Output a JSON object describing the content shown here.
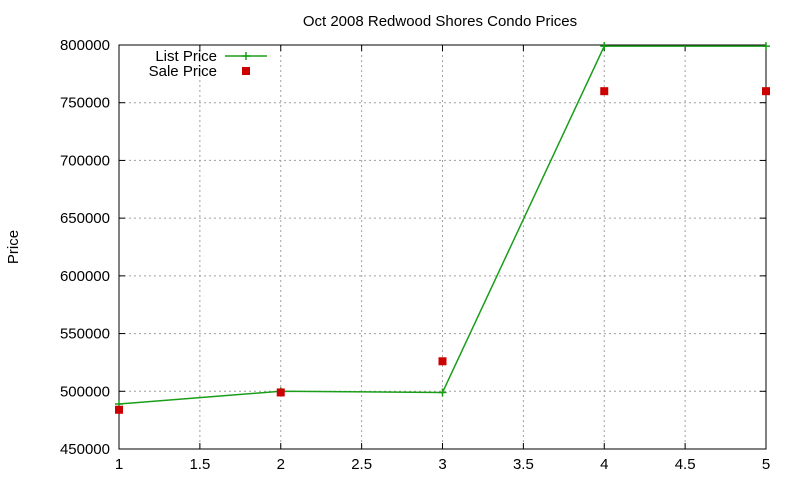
{
  "chart_data": {
    "type": "line",
    "title": "Oct 2008 Redwood Shores Condo Prices",
    "xlabel": "",
    "ylabel": "Price",
    "xlim": [
      1,
      5
    ],
    "ylim": [
      450000,
      800000
    ],
    "x_ticks": [
      1,
      1.5,
      2,
      2.5,
      3,
      3.5,
      4,
      4.5,
      5
    ],
    "x_tick_labels": [
      "1",
      "1.5",
      "2",
      "2.5",
      "3",
      "3.5",
      "4",
      "4.5",
      "5"
    ],
    "y_ticks": [
      450000,
      500000,
      550000,
      600000,
      650000,
      700000,
      750000,
      800000
    ],
    "y_tick_labels": [
      "450000",
      "500000",
      "550000",
      "600000",
      "650000",
      "700000",
      "750000",
      "800000"
    ],
    "grid": true,
    "legend_position": "top-left",
    "series": [
      {
        "name": "List Price",
        "style": "linespoints",
        "marker": "plus",
        "color": "#1a9e1a",
        "x": [
          1,
          2,
          3,
          4,
          5
        ],
        "y": [
          489000,
          500000,
          499000,
          799000,
          799000
        ]
      },
      {
        "name": "Sale Price",
        "style": "points",
        "marker": "square",
        "color": "#cc0000",
        "x": [
          1,
          2,
          3,
          4,
          5
        ],
        "y": [
          484000,
          499000,
          526000,
          760000,
          760000
        ]
      }
    ]
  }
}
